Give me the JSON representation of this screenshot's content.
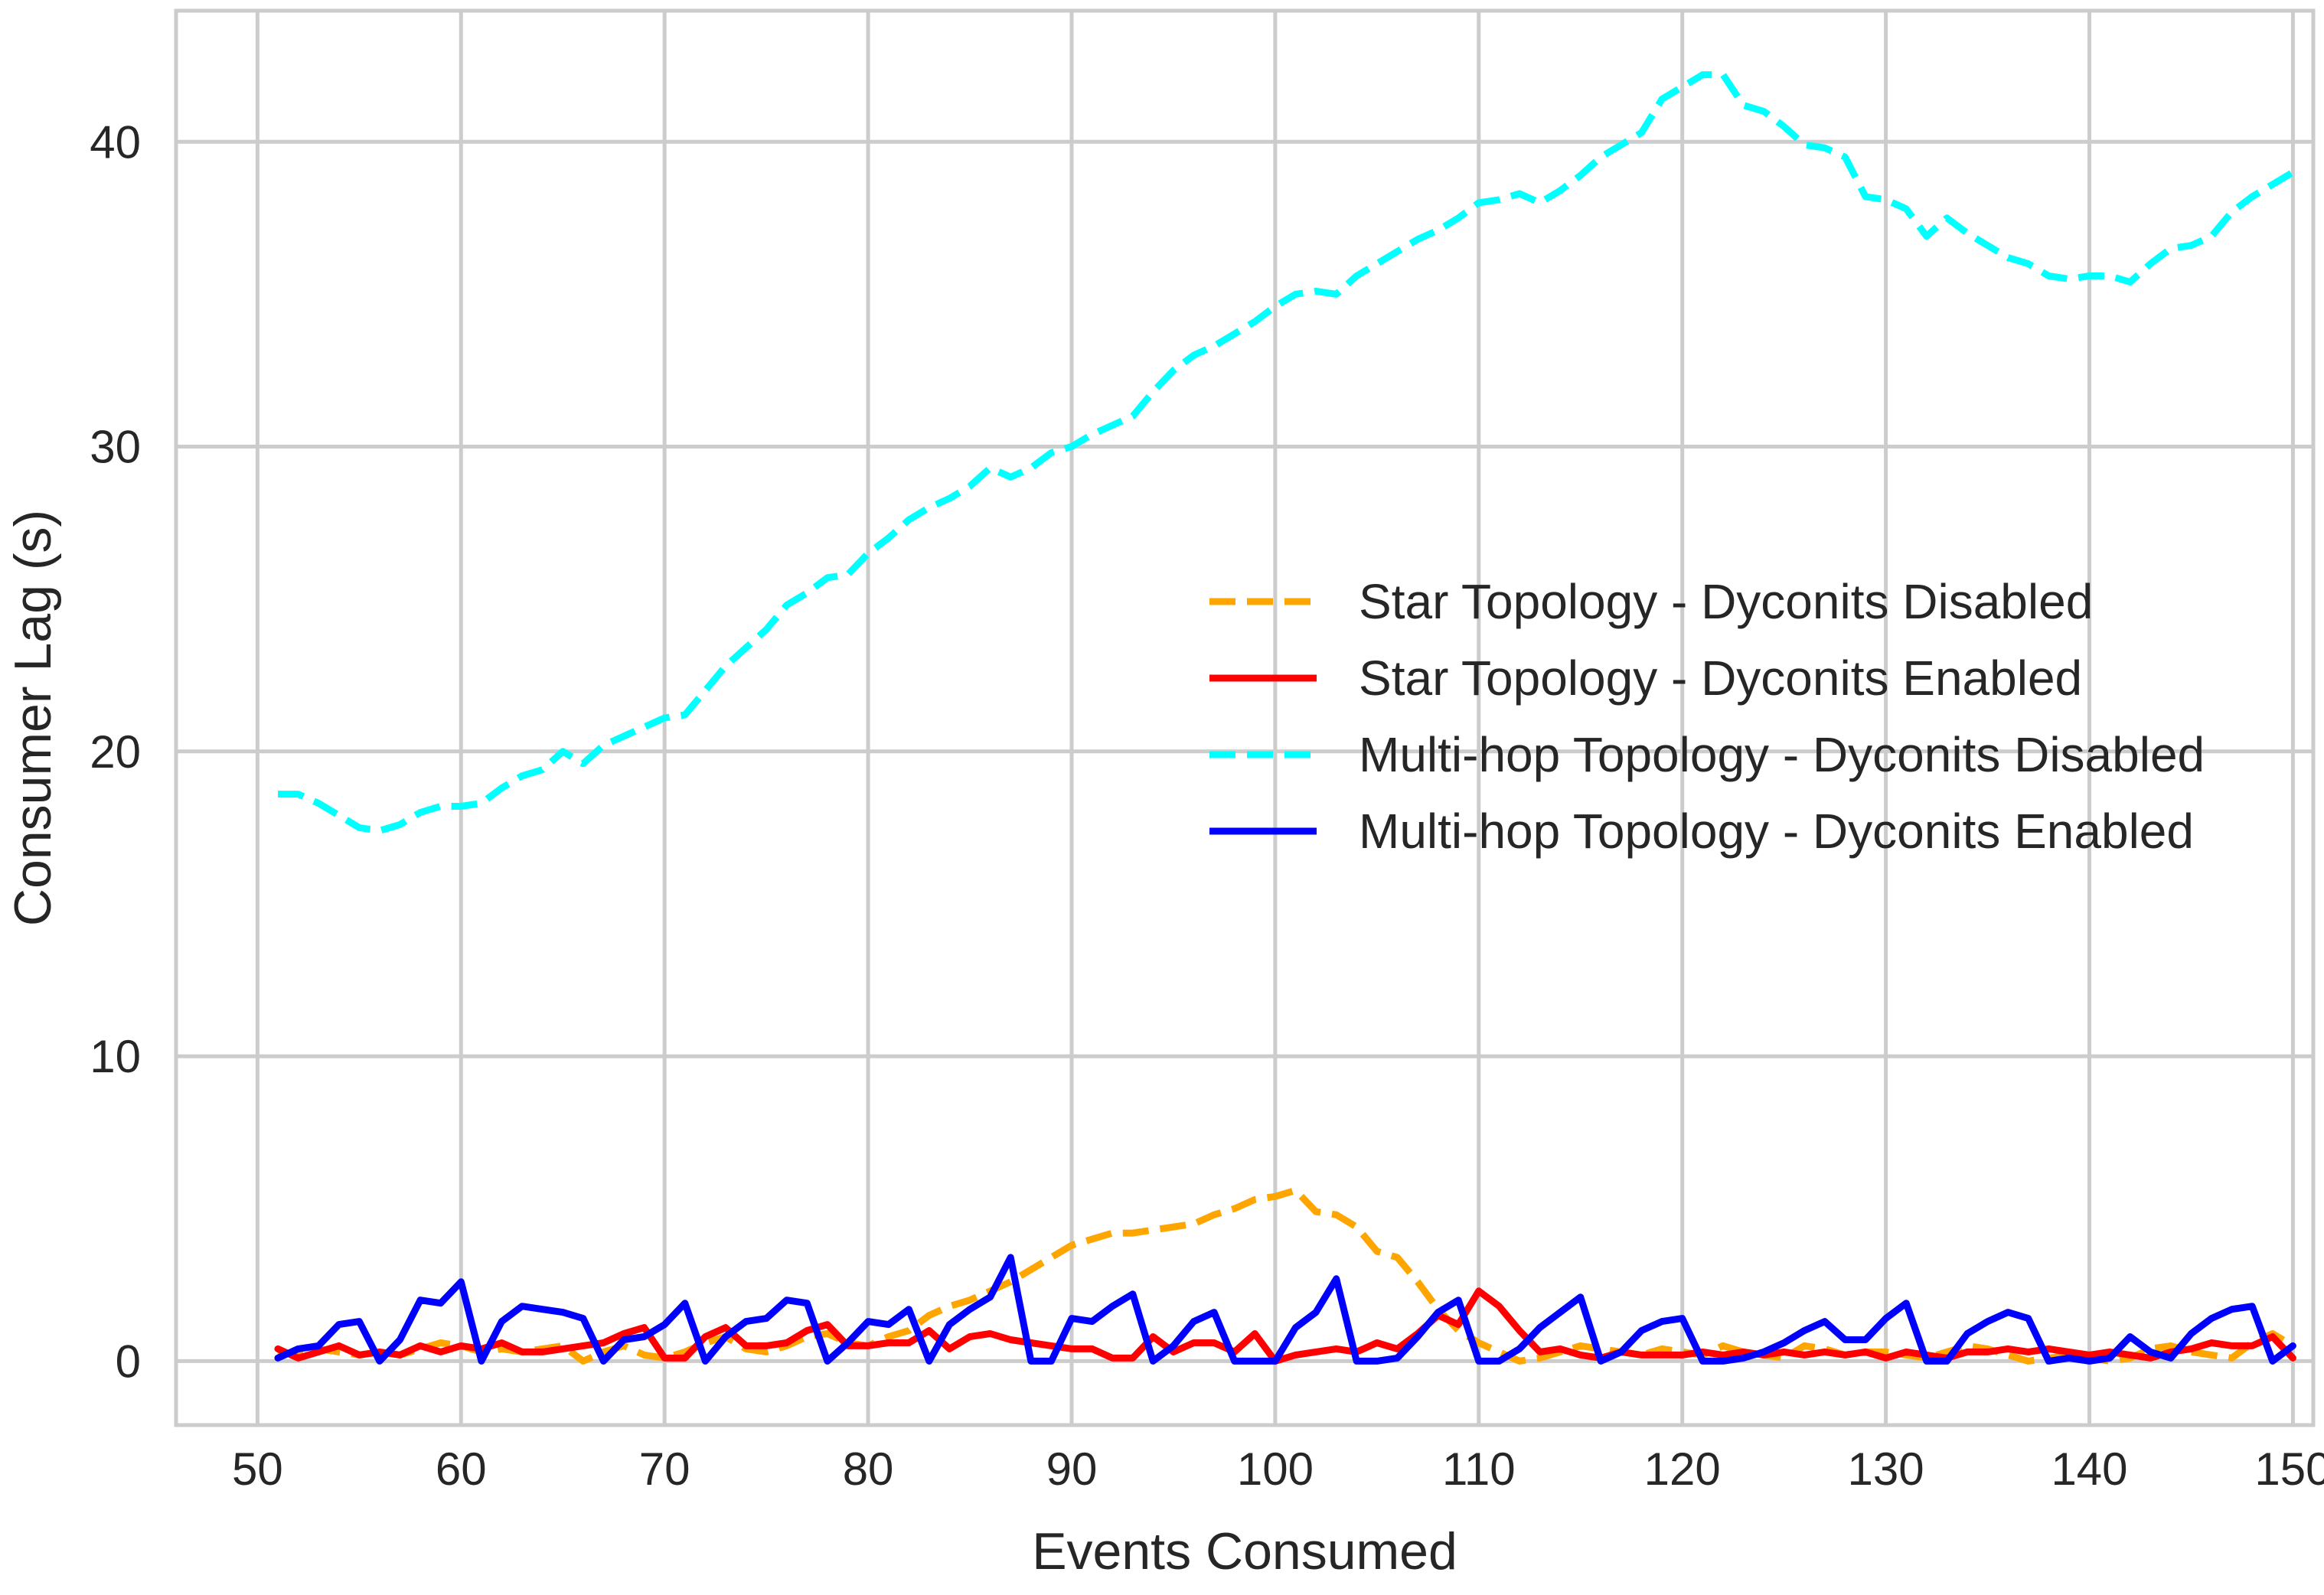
{
  "colors": {
    "background": "#ffffff",
    "grid": "#cccccc",
    "text": "#262626",
    "star_disabled": "#ffa500",
    "star_enabled": "#ff0000",
    "multihop_disabled": "#00ffff",
    "multihop_enabled": "#0000ff"
  },
  "chart_data": {
    "type": "line",
    "title": "",
    "xlabel": "Events Consumed",
    "ylabel": "Consumer Lag (s)",
    "xlim": [
      46,
      151
    ],
    "ylim": [
      -2.1,
      44.3
    ],
    "xticks": [
      50,
      60,
      70,
      80,
      90,
      100,
      110,
      120,
      130,
      140,
      150
    ],
    "yticks": [
      0,
      10,
      20,
      30,
      40
    ],
    "grid": true,
    "legend_position": "center-right",
    "x": [
      51,
      52,
      53,
      54,
      55,
      56,
      57,
      58,
      59,
      60,
      61,
      62,
      63,
      64,
      65,
      66,
      67,
      68,
      69,
      70,
      71,
      72,
      73,
      74,
      75,
      76,
      77,
      78,
      79,
      80,
      81,
      82,
      83,
      84,
      85,
      86,
      87,
      88,
      89,
      90,
      91,
      92,
      93,
      94,
      95,
      96,
      97,
      98,
      99,
      100,
      101,
      102,
      103,
      104,
      105,
      106,
      107,
      108,
      109,
      110,
      111,
      112,
      113,
      114,
      115,
      116,
      117,
      118,
      119,
      120,
      121,
      122,
      123,
      124,
      125,
      126,
      127,
      128,
      129,
      130,
      131,
      132,
      133,
      134,
      135,
      136,
      137,
      138,
      139,
      140,
      141,
      142,
      143,
      144,
      145,
      146,
      147,
      148,
      149,
      150
    ],
    "series": [
      {
        "name": "Star Topology - Dyconits Disabled",
        "style": "dashed",
        "color": "#ffa500",
        "values": [
          0.3,
          0.2,
          0.4,
          0.3,
          0.2,
          0.3,
          0.2,
          0.4,
          0.6,
          0.5,
          0.3,
          0.4,
          0.3,
          0.4,
          0.5,
          0.0,
          0.3,
          0.5,
          0.2,
          0.1,
          0.3,
          0.6,
          0.8,
          0.4,
          0.3,
          0.5,
          0.8,
          0.9,
          0.6,
          0.5,
          0.8,
          1.0,
          1.5,
          1.8,
          2.0,
          2.3,
          2.6,
          3.0,
          3.4,
          3.8,
          4.0,
          4.2,
          4.2,
          4.3,
          4.4,
          4.5,
          4.8,
          5.0,
          5.3,
          5.4,
          5.6,
          4.9,
          4.8,
          4.4,
          3.6,
          3.4,
          2.6,
          1.7,
          1.0,
          0.6,
          0.3,
          0.0,
          0.1,
          0.3,
          0.5,
          0.4,
          0.3,
          0.2,
          0.4,
          0.3,
          0.2,
          0.5,
          0.3,
          0.2,
          0.1,
          0.5,
          0.4,
          0.2,
          0.3,
          0.3,
          0.2,
          0.1,
          0.3,
          0.5,
          0.4,
          0.2,
          0.0,
          0.1,
          0.2,
          0.1,
          0.0,
          0.1,
          0.4,
          0.5,
          0.3,
          0.2,
          0.1,
          0.6,
          0.9,
          0.5
        ]
      },
      {
        "name": "Star Topology - Dyconits Enabled",
        "style": "solid",
        "color": "#ff0000",
        "values": [
          0.4,
          0.1,
          0.3,
          0.5,
          0.2,
          0.3,
          0.2,
          0.5,
          0.3,
          0.5,
          0.4,
          0.6,
          0.3,
          0.3,
          0.4,
          0.5,
          0.6,
          0.9,
          1.1,
          0.1,
          0.1,
          0.8,
          1.1,
          0.5,
          0.5,
          0.6,
          1.0,
          1.2,
          0.5,
          0.5,
          0.6,
          0.6,
          1.0,
          0.4,
          0.8,
          0.9,
          0.7,
          0.6,
          0.5,
          0.4,
          0.4,
          0.1,
          0.1,
          0.8,
          0.3,
          0.6,
          0.6,
          0.3,
          0.9,
          0.0,
          0.2,
          0.3,
          0.4,
          0.3,
          0.6,
          0.4,
          0.9,
          1.5,
          1.2,
          2.3,
          1.8,
          1.0,
          0.3,
          0.4,
          0.2,
          0.1,
          0.3,
          0.2,
          0.2,
          0.2,
          0.3,
          0.2,
          0.3,
          0.2,
          0.3,
          0.2,
          0.3,
          0.2,
          0.3,
          0.1,
          0.3,
          0.2,
          0.1,
          0.3,
          0.3,
          0.4,
          0.3,
          0.4,
          0.3,
          0.2,
          0.3,
          0.2,
          0.1,
          0.3,
          0.4,
          0.6,
          0.5,
          0.5,
          0.8,
          0.1
        ]
      },
      {
        "name": "Multi-hop Topology - Dyconits Disabled",
        "style": "dashed",
        "color": "#00ffff",
        "values": [
          18.6,
          18.6,
          18.3,
          17.9,
          17.5,
          17.4,
          17.6,
          18.0,
          18.2,
          18.2,
          18.3,
          18.8,
          19.2,
          19.4,
          20.0,
          19.6,
          20.2,
          20.5,
          20.8,
          21.1,
          21.2,
          22.0,
          22.8,
          23.4,
          24.0,
          24.8,
          25.2,
          25.7,
          25.8,
          26.5,
          27.0,
          27.6,
          28.0,
          28.3,
          28.7,
          29.3,
          29.0,
          29.3,
          29.8,
          30.0,
          30.4,
          30.7,
          31.0,
          31.8,
          32.5,
          33.0,
          33.3,
          33.7,
          34.1,
          34.6,
          35.0,
          35.1,
          35.0,
          35.6,
          36.0,
          36.4,
          36.8,
          37.1,
          37.5,
          38.0,
          38.1,
          38.3,
          38.0,
          38.4,
          38.9,
          39.5,
          39.9,
          40.3,
          41.4,
          41.8,
          42.2,
          42.2,
          41.2,
          41.0,
          40.5,
          39.9,
          39.8,
          39.5,
          38.2,
          38.1,
          37.8,
          36.9,
          37.5,
          37.0,
          36.6,
          36.2,
          36.0,
          35.6,
          35.5,
          35.6,
          35.6,
          35.4,
          36.0,
          36.5,
          36.6,
          36.9,
          37.7,
          38.2,
          38.6,
          39.0
        ]
      },
      {
        "name": "Multi-hop Topology - Dyconits Enabled",
        "style": "solid",
        "color": "#0000ff",
        "values": [
          0.1,
          0.4,
          0.5,
          1.2,
          1.3,
          0.0,
          0.7,
          2.0,
          1.9,
          2.6,
          0.0,
          1.3,
          1.8,
          1.7,
          1.6,
          1.4,
          0.0,
          0.7,
          0.8,
          1.2,
          1.9,
          0.0,
          0.8,
          1.3,
          1.4,
          2.0,
          1.9,
          0.0,
          0.6,
          1.3,
          1.2,
          1.7,
          0.0,
          1.2,
          1.7,
          2.1,
          3.4,
          0.0,
          0.0,
          1.4,
          1.3,
          1.8,
          2.2,
          0.0,
          0.5,
          1.3,
          1.6,
          0.0,
          0.0,
          0.0,
          1.1,
          1.6,
          2.7,
          0.0,
          0.0,
          0.1,
          0.8,
          1.6,
          2.0,
          0.0,
          0.0,
          0.4,
          1.1,
          1.6,
          2.1,
          0.0,
          0.3,
          1.0,
          1.3,
          1.4,
          0.0,
          0.0,
          0.1,
          0.3,
          0.6,
          1.0,
          1.3,
          0.7,
          0.7,
          1.4,
          1.9,
          0.0,
          0.0,
          0.9,
          1.3,
          1.6,
          1.4,
          0.0,
          0.1,
          0.0,
          0.1,
          0.8,
          0.3,
          0.1,
          0.9,
          1.4,
          1.7,
          1.8,
          0.0,
          0.5
        ]
      }
    ]
  }
}
